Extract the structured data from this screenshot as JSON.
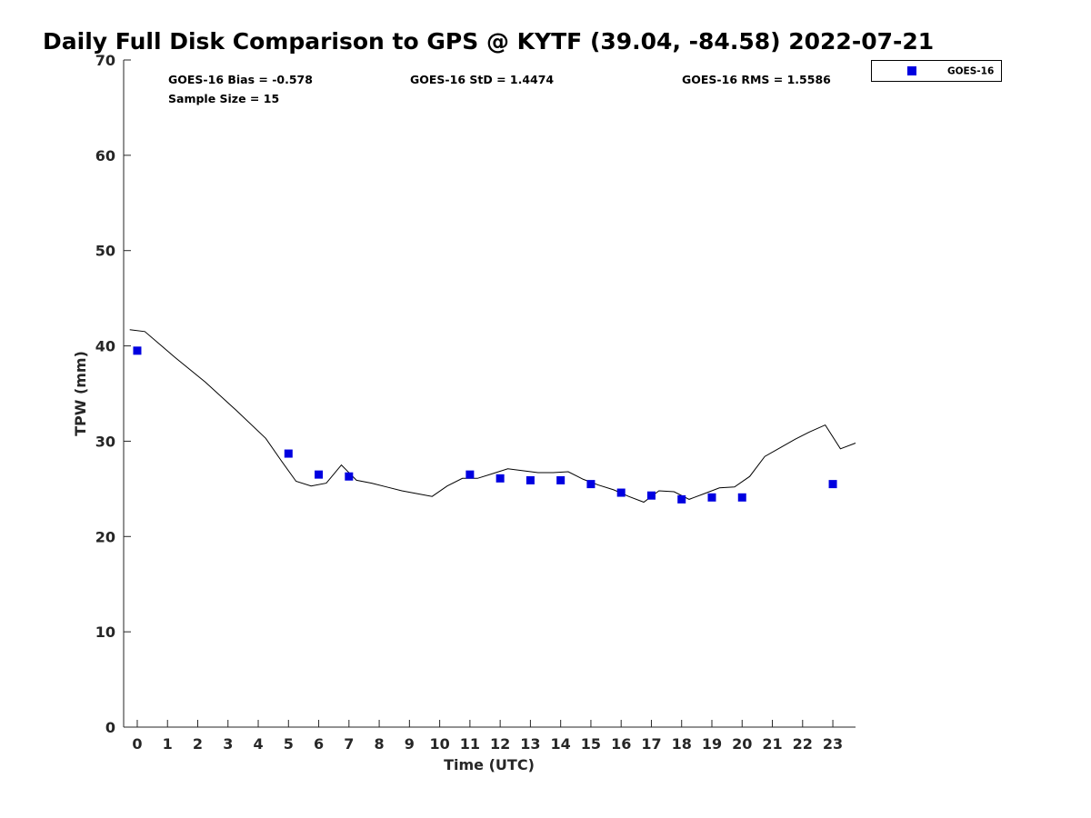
{
  "chart_data": {
    "type": "scatter",
    "title": "Daily Full Disk Comparison to GPS @ KYTF (39.04, -84.58) 2022-07-21",
    "xlabel": "Time (UTC)",
    "ylabel": "TPW (mm)",
    "xlim": [
      -0.45,
      23.75
    ],
    "ylim": [
      0,
      70
    ],
    "xticks": [
      "0",
      "1",
      "2",
      "3",
      "4",
      "5",
      "6",
      "7",
      "8",
      "9",
      "10",
      "11",
      "12",
      "13",
      "14",
      "15",
      "16",
      "17",
      "18",
      "19",
      "20",
      "21",
      "22",
      "23"
    ],
    "yticks": [
      "0",
      "10",
      "20",
      "30",
      "40",
      "50",
      "60",
      "70"
    ],
    "grid": false,
    "legend_position": "top-right",
    "stats": {
      "bias": "GOES-16 Bias = -0.578",
      "std": "GOES-16 StD = 1.4474",
      "rms": "GOES-16 RMS = 1.5586",
      "sample": "Sample Size = 15"
    },
    "series": [
      {
        "name": "GOES-16",
        "kind": "scatter",
        "color": "#0000e0",
        "x": [
          0,
          5,
          6,
          7,
          11,
          12,
          13,
          14,
          15,
          16,
          17,
          18,
          19,
          20,
          23
        ],
        "y": [
          39.5,
          28.7,
          26.5,
          26.3,
          26.5,
          26.1,
          25.9,
          25.9,
          25.5,
          24.6,
          24.3,
          23.9,
          24.1,
          24.1,
          25.5
        ]
      },
      {
        "kind": "line",
        "color": "#000000",
        "x": [
          -0.25,
          0.25,
          1.25,
          2.25,
          3.25,
          4.25,
          4.75,
          5.25,
          5.75,
          6.25,
          6.75,
          7.25,
          7.75,
          8.25,
          8.75,
          9.25,
          9.75,
          10.25,
          10.75,
          11.25,
          11.75,
          12.25,
          12.75,
          13.25,
          13.75,
          14.25,
          14.75,
          15.25,
          15.75,
          16.25,
          16.75,
          17.25,
          17.75,
          18.25,
          18.75,
          19.25,
          19.75,
          20.25,
          20.75,
          21.25,
          21.75,
          22.25,
          22.75,
          23.25,
          23.75
        ],
        "y": [
          41.7,
          41.5,
          38.8,
          36.2,
          33.3,
          30.3,
          28.0,
          25.8,
          25.3,
          25.6,
          27.5,
          25.9,
          25.6,
          25.2,
          24.8,
          24.5,
          24.2,
          25.3,
          26.1,
          26.1,
          26.6,
          27.1,
          26.9,
          26.7,
          26.7,
          26.8,
          26.0,
          25.4,
          24.9,
          24.2,
          23.6,
          24.8,
          24.7,
          23.9,
          24.5,
          25.1,
          25.2,
          26.3,
          28.4,
          29.3,
          30.2,
          31.0,
          31.7,
          29.2,
          29.8
        ]
      }
    ]
  }
}
